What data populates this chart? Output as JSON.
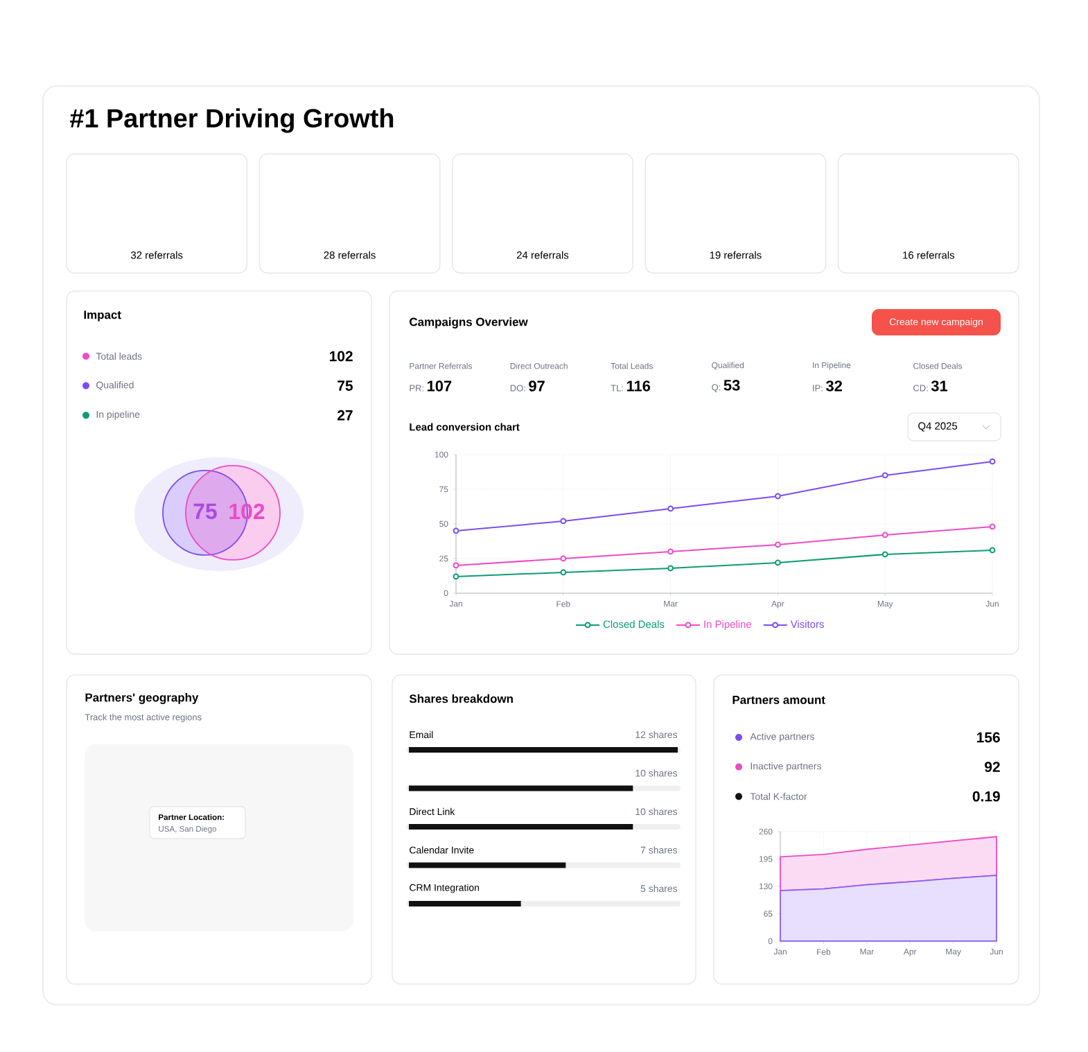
{
  "chart_data": [
    {
      "type": "other",
      "title": "#1 Partner Driving Growth",
      "value_labels": [
        "32 referrals",
        "28 referrals",
        "24 referrals",
        "19 referrals",
        "16 referrals"
      ]
    },
    {
      "type": "other",
      "title": "Impact",
      "categories": [
        "Total leads",
        "Qualified",
        "In pipeline"
      ],
      "values": [
        102,
        75,
        27
      ],
      "colors": [
        "#ec4bc5",
        "#7b4cf5",
        "#0d9b76"
      ],
      "data_labels": true
    },
    {
      "type": "other",
      "values": [
        75,
        102
      ],
      "colors": [
        "#7b4cf5",
        "#ec4bc5"
      ],
      "data_labels": true
    },
    {
      "type": "other",
      "title": "Campaigns Overview",
      "categories": [
        "Partner Referrals",
        "Direct Outreach",
        "Total Leads",
        "Qualified",
        "In Pipeline",
        "Closed Deals"
      ],
      "value_labels": [
        "PR: **107**",
        "DO: **97**",
        "TL: **116**",
        "Q: **53**",
        "IP: **32**",
        "CD: **31**"
      ],
      "annotations": [
        "Create new campaign"
      ]
    },
    {
      "type": "line",
      "title": "Lead conversion chart",
      "annotations": [
        "Q4 2025"
      ],
      "categories": [
        "Jan",
        "Feb",
        "Mar",
        "Apr",
        "May",
        "Jun"
      ],
      "series": [
        {
          "name": "Closed Deals",
          "color": "#0d9b76",
          "values": [
            12,
            15,
            18,
            22,
            28,
            31
          ]
        },
        {
          "name": "In Pipeline",
          "color": "#ec4bc5",
          "values": [
            20,
            25,
            30,
            35,
            42,
            48
          ]
        },
        {
          "name": "Visitors",
          "color": "#7b4cf5",
          "values": [
            45,
            52,
            61,
            70,
            85,
            95
          ]
        }
      ],
      "ylim": [
        0,
        100
      ],
      "yticks": [
        0,
        25,
        50,
        75,
        100
      ],
      "grid": true,
      "legend": "bottom",
      "marker": "circle"
    },
    {
      "type": "other",
      "title": "Partners' geography",
      "subtitle": "Track the most active regions",
      "annotations": [
        "Partner Location:",
        "USA, San Diego"
      ]
    },
    {
      "type": "bar",
      "title": "Shares breakdown",
      "orientation": "horizontal",
      "categories": [
        "Email",
        null,
        "Direct Link",
        "Calendar Invite",
        "CRM Integration"
      ],
      "values": [
        12,
        10,
        10,
        7,
        5
      ],
      "value_labels": [
        "12 shares",
        "10 shares",
        "10 shares",
        "7 shares",
        "5 shares"
      ],
      "color": "#111111"
    },
    {
      "type": "other",
      "title": "Partners amount",
      "categories": [
        "Active partners",
        "Inactive partners",
        "Total K-factor"
      ],
      "values": [
        156,
        92,
        0.19
      ],
      "colors": [
        "#7b4cf5",
        "#ec4bc5",
        "#111111"
      ],
      "data_labels": true
    },
    {
      "type": "area",
      "categories": [
        "Jan",
        "Feb",
        "Mar",
        "Apr",
        "May",
        "Jun"
      ],
      "stacked": true,
      "series": [
        {
          "color": "#8b5cf6",
          "values": [
            120,
            124,
            134,
            141,
            149,
            156
          ]
        },
        {
          "color": "#ec4bc5",
          "values": [
            80,
            82,
            84,
            87,
            89,
            92
          ]
        }
      ],
      "ylim": [
        0,
        260
      ],
      "yticks": [
        0,
        65,
        130,
        195,
        260
      ],
      "grid": true
    }
  ]
}
